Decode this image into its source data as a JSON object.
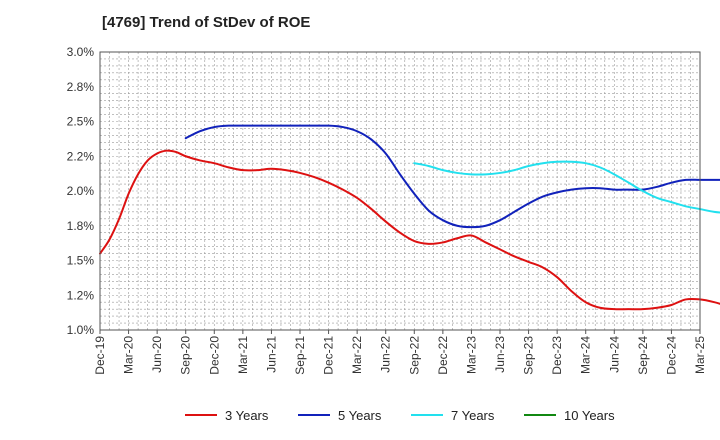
{
  "title": "[4769]  Trend of StDev of ROE",
  "chart_data": {
    "type": "line",
    "title": "[4769]  Trend of StDev of ROE",
    "xlabel": "",
    "ylabel": "",
    "ylim": [
      1.0,
      3.0
    ],
    "yticks": [
      "3.0%",
      "2.8%",
      "2.5%",
      "2.2%",
      "2.0%",
      "1.8%",
      "1.5%",
      "1.2%",
      "1.0%"
    ],
    "ytick_values": [
      3.0,
      2.75,
      2.5,
      2.25,
      2.0,
      1.75,
      1.5,
      1.25,
      1.0
    ],
    "xticks": [
      "Dec-19",
      "Mar-20",
      "Jun-20",
      "Sep-20",
      "Dec-20",
      "Mar-21",
      "Jun-21",
      "Sep-21",
      "Dec-21",
      "Mar-22",
      "Jun-22",
      "Sep-22",
      "Dec-22",
      "Mar-23",
      "Jun-23",
      "Sep-23",
      "Dec-23",
      "Mar-24",
      "Jun-24",
      "Sep-24",
      "Dec-24",
      "Mar-25"
    ],
    "grid": true,
    "legend_position": "bottom",
    "series": [
      {
        "name": "3 Years",
        "color": "#dd1111",
        "points": [
          [
            0,
            1.55
          ],
          [
            0.33,
            1.65
          ],
          [
            0.67,
            1.8
          ],
          [
            1,
            1.98
          ],
          [
            1.33,
            2.12
          ],
          [
            1.67,
            2.22
          ],
          [
            2,
            2.27
          ],
          [
            2.33,
            2.29
          ],
          [
            2.67,
            2.28
          ],
          [
            3,
            2.25
          ],
          [
            3.5,
            2.22
          ],
          [
            4,
            2.2
          ],
          [
            4.5,
            2.17
          ],
          [
            5,
            2.15
          ],
          [
            5.5,
            2.15
          ],
          [
            6,
            2.16
          ],
          [
            6.5,
            2.15
          ],
          [
            7,
            2.13
          ],
          [
            7.5,
            2.1
          ],
          [
            8,
            2.06
          ],
          [
            8.5,
            2.01
          ],
          [
            9,
            1.95
          ],
          [
            9.5,
            1.87
          ],
          [
            10,
            1.78
          ],
          [
            10.5,
            1.7
          ],
          [
            11,
            1.64
          ],
          [
            11.5,
            1.62
          ],
          [
            12,
            1.63
          ],
          [
            12.5,
            1.66
          ],
          [
            13,
            1.68
          ],
          [
            13.5,
            1.63
          ],
          [
            14,
            1.58
          ],
          [
            14.5,
            1.53
          ],
          [
            15,
            1.49
          ],
          [
            15.5,
            1.45
          ],
          [
            16,
            1.38
          ],
          [
            16.5,
            1.28
          ],
          [
            17,
            1.2
          ],
          [
            17.5,
            1.16
          ],
          [
            18,
            1.15
          ],
          [
            18.5,
            1.15
          ],
          [
            19,
            1.15
          ],
          [
            19.5,
            1.16
          ],
          [
            20,
            1.18
          ],
          [
            20.5,
            1.22
          ],
          [
            21,
            1.22
          ],
          [
            21.5,
            1.2
          ],
          [
            22,
            1.17
          ]
        ]
      },
      {
        "name": "5 Years",
        "color": "#1122bb",
        "points": [
          [
            3,
            2.38
          ],
          [
            3.5,
            2.43
          ],
          [
            4,
            2.46
          ],
          [
            4.5,
            2.47
          ],
          [
            5,
            2.47
          ],
          [
            6,
            2.47
          ],
          [
            7,
            2.47
          ],
          [
            8,
            2.47
          ],
          [
            8.5,
            2.46
          ],
          [
            9,
            2.43
          ],
          [
            9.5,
            2.37
          ],
          [
            10,
            2.27
          ],
          [
            10.5,
            2.12
          ],
          [
            11,
            1.98
          ],
          [
            11.5,
            1.86
          ],
          [
            12,
            1.79
          ],
          [
            12.5,
            1.75
          ],
          [
            13,
            1.74
          ],
          [
            13.5,
            1.75
          ],
          [
            14,
            1.79
          ],
          [
            14.5,
            1.85
          ],
          [
            15,
            1.91
          ],
          [
            15.5,
            1.96
          ],
          [
            16,
            1.99
          ],
          [
            16.5,
            2.01
          ],
          [
            17,
            2.02
          ],
          [
            17.5,
            2.02
          ],
          [
            18,
            2.01
          ],
          [
            18.5,
            2.01
          ],
          [
            19,
            2.01
          ],
          [
            19.5,
            2.03
          ],
          [
            20,
            2.06
          ],
          [
            20.5,
            2.08
          ],
          [
            21,
            2.08
          ],
          [
            21.5,
            2.08
          ],
          [
            22,
            2.08
          ]
        ]
      },
      {
        "name": "7 Years",
        "color": "#22e0ee",
        "points": [
          [
            11,
            2.2
          ],
          [
            11.5,
            2.18
          ],
          [
            12,
            2.15
          ],
          [
            12.5,
            2.13
          ],
          [
            13,
            2.12
          ],
          [
            13.5,
            2.12
          ],
          [
            14,
            2.13
          ],
          [
            14.5,
            2.15
          ],
          [
            15,
            2.18
          ],
          [
            15.5,
            2.2
          ],
          [
            16,
            2.21
          ],
          [
            16.5,
            2.21
          ],
          [
            17,
            2.2
          ],
          [
            17.5,
            2.17
          ],
          [
            18,
            2.12
          ],
          [
            18.5,
            2.06
          ],
          [
            19,
            2.0
          ],
          [
            19.5,
            1.95
          ],
          [
            20,
            1.92
          ],
          [
            20.5,
            1.89
          ],
          [
            21,
            1.87
          ],
          [
            21.5,
            1.85
          ],
          [
            22,
            1.84
          ]
        ]
      },
      {
        "name": "10 Years",
        "color": "#118811",
        "points": []
      }
    ]
  }
}
